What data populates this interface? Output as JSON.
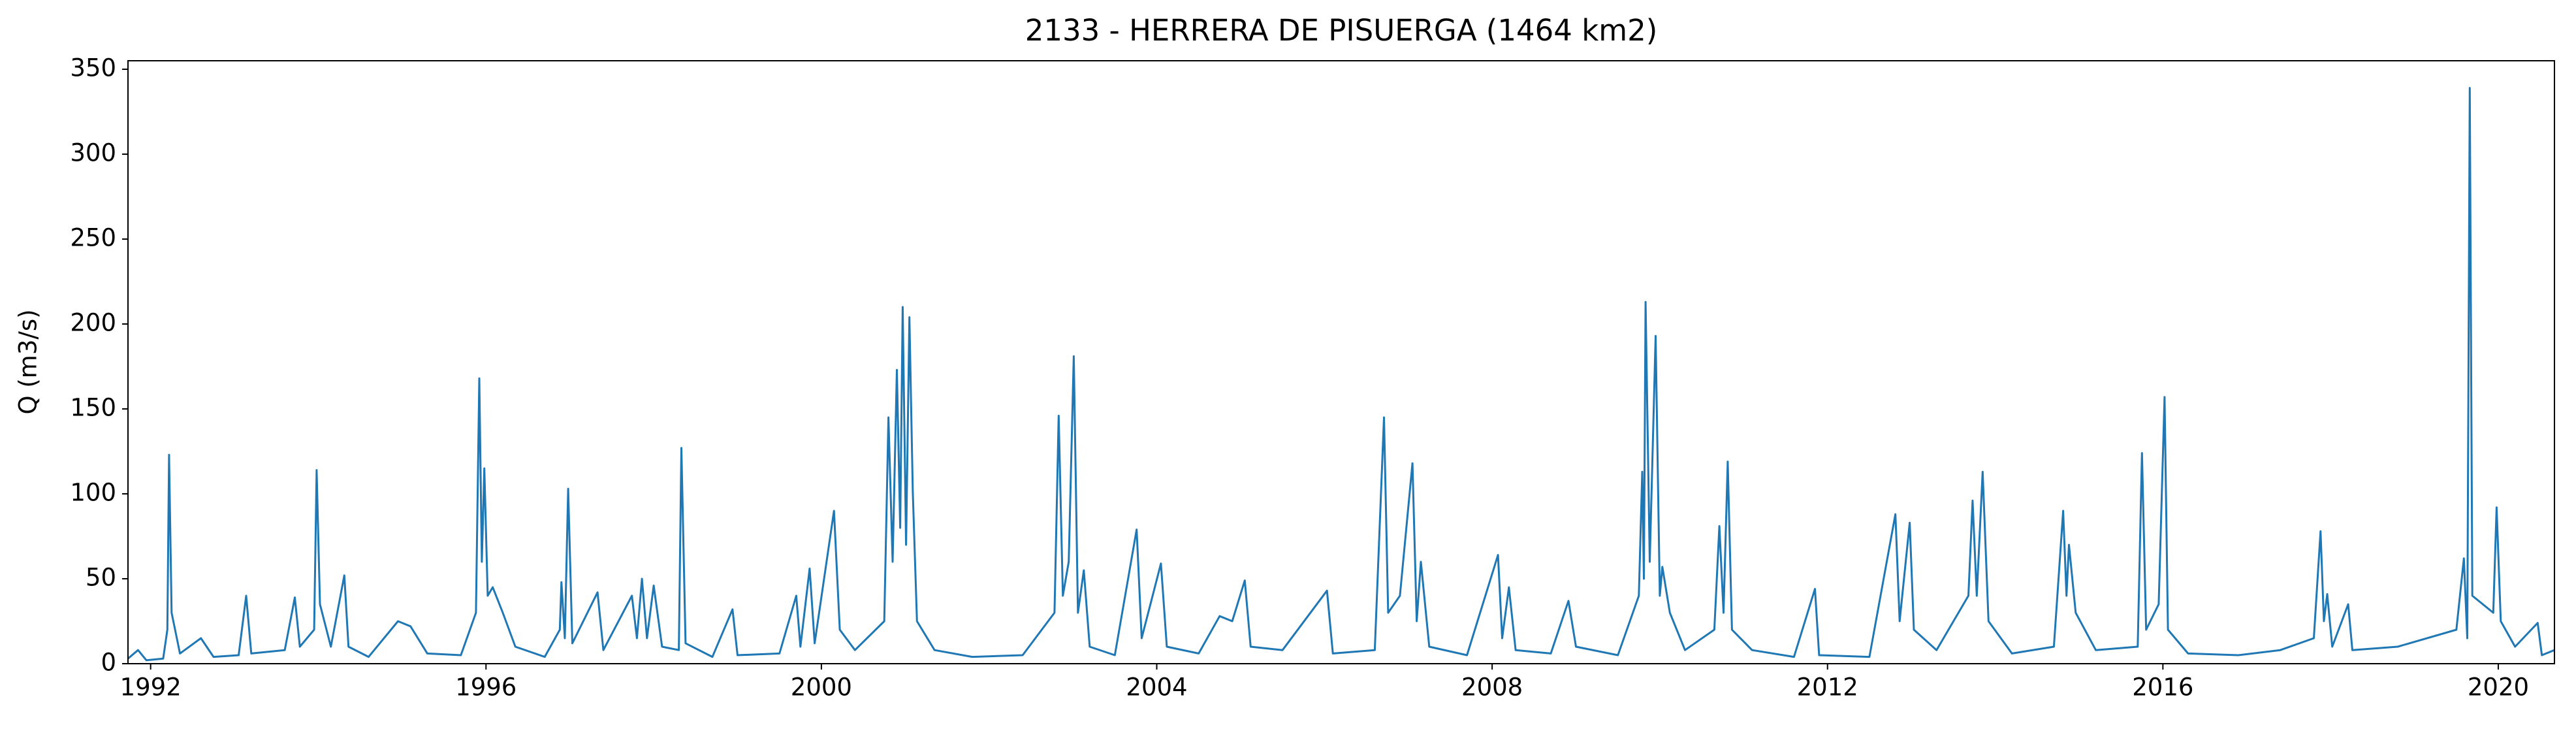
{
  "chart_data": {
    "type": "line",
    "title": "2133 - HERRERA DE PISUERGA (1464 km2)",
    "ylabel": "Q (m3/s)",
    "color": "#1f77b4",
    "xlim": [
      1991.73,
      2020.67
    ],
    "xticks": [
      1992,
      1996,
      2000,
      2004,
      2008,
      2012,
      2016,
      2020
    ],
    "ylim": [
      0,
      355
    ],
    "yticks": [
      0,
      50,
      100,
      150,
      200,
      250,
      300,
      350
    ],
    "grid": false,
    "x": [
      1991.73,
      1991.85,
      1991.95,
      1992.15,
      1992.2,
      1992.22,
      1992.25,
      1992.35,
      1992.6,
      1992.75,
      1993.05,
      1993.14,
      1993.2,
      1993.6,
      1993.72,
      1993.78,
      1993.95,
      1993.98,
      1994.02,
      1994.15,
      1994.31,
      1994.36,
      1994.6,
      1994.95,
      1995.1,
      1995.3,
      1995.7,
      1995.88,
      1995.92,
      1995.95,
      1995.98,
      1996.02,
      1996.08,
      1996.2,
      1996.35,
      1996.7,
      1996.88,
      1996.9,
      1996.94,
      1996.98,
      1997.03,
      1997.33,
      1997.4,
      1997.74,
      1997.8,
      1997.86,
      1997.92,
      1998.0,
      1998.1,
      1998.3,
      1998.33,
      1998.38,
      1998.7,
      1998.94,
      1999.0,
      1999.5,
      1999.7,
      1999.75,
      1999.86,
      1999.92,
      2000.15,
      2000.22,
      2000.4,
      2000.75,
      2000.8,
      2000.85,
      2000.9,
      2000.94,
      2000.97,
      2001.01,
      2001.05,
      2001.09,
      2001.14,
      2001.35,
      2001.8,
      2002.4,
      2002.78,
      2002.83,
      2002.88,
      2002.95,
      2003.01,
      2003.06,
      2003.13,
      2003.2,
      2003.5,
      2003.76,
      2003.82,
      2004.05,
      2004.12,
      2004.5,
      2004.75,
      2004.9,
      2005.05,
      2005.12,
      2005.5,
      2006.03,
      2006.1,
      2006.6,
      2006.71,
      2006.76,
      2006.9,
      2007.05,
      2007.1,
      2007.15,
      2007.25,
      2007.7,
      2008.07,
      2008.12,
      2008.2,
      2008.28,
      2008.7,
      2008.91,
      2009.0,
      2009.5,
      2009.75,
      2009.79,
      2009.81,
      2009.83,
      2009.88,
      2009.95,
      2010.0,
      2010.03,
      2010.12,
      2010.3,
      2010.65,
      2010.71,
      2010.76,
      2010.81,
      2010.86,
      2011.1,
      2011.6,
      2011.85,
      2011.9,
      2012.5,
      2012.81,
      2012.86,
      2012.98,
      2013.03,
      2013.3,
      2013.68,
      2013.73,
      2013.78,
      2013.85,
      2013.92,
      2014.2,
      2014.7,
      2014.81,
      2014.85,
      2014.88,
      2014.96,
      2015.2,
      2015.7,
      2015.75,
      2015.8,
      2015.95,
      2016.02,
      2016.06,
      2016.3,
      2016.9,
      2017.4,
      2017.8,
      2017.88,
      2017.92,
      2017.96,
      2018.02,
      2018.21,
      2018.26,
      2018.8,
      2019.5,
      2019.59,
      2019.63,
      2019.66,
      2019.69,
      2019.94,
      2019.98,
      2020.03,
      2020.2,
      2020.47,
      2020.52,
      2020.67
    ],
    "values": [
      3,
      8,
      2,
      3,
      20,
      123,
      30,
      6,
      15,
      4,
      5,
      40,
      6,
      8,
      39,
      10,
      20,
      114,
      35,
      10,
      52,
      10,
      4,
      25,
      22,
      6,
      5,
      30,
      168,
      60,
      115,
      40,
      45,
      30,
      10,
      4,
      20,
      48,
      15,
      103,
      12,
      42,
      8,
      40,
      15,
      50,
      15,
      46,
      10,
      8,
      127,
      12,
      4,
      32,
      5,
      6,
      40,
      10,
      56,
      12,
      90,
      20,
      8,
      25,
      145,
      60,
      173,
      80,
      210,
      70,
      204,
      101,
      25,
      8,
      4,
      5,
      30,
      146,
      40,
      60,
      181,
      30,
      55,
      10,
      5,
      79,
      15,
      59,
      10,
      6,
      28,
      25,
      49,
      10,
      8,
      43,
      6,
      8,
      145,
      30,
      40,
      118,
      25,
      60,
      10,
      5,
      64,
      15,
      45,
      8,
      6,
      37,
      10,
      5,
      40,
      113,
      50,
      213,
      60,
      193,
      40,
      57,
      30,
      8,
      20,
      81,
      30,
      119,
      20,
      8,
      4,
      44,
      5,
      4,
      88,
      25,
      83,
      20,
      8,
      40,
      96,
      40,
      113,
      25,
      6,
      10,
      90,
      40,
      70,
      30,
      8,
      10,
      124,
      20,
      35,
      157,
      20,
      6,
      5,
      8,
      15,
      78,
      25,
      41,
      10,
      35,
      8,
      10,
      20,
      62,
      15,
      339,
      40,
      30,
      92,
      25,
      10,
      24,
      5,
      8
    ]
  }
}
